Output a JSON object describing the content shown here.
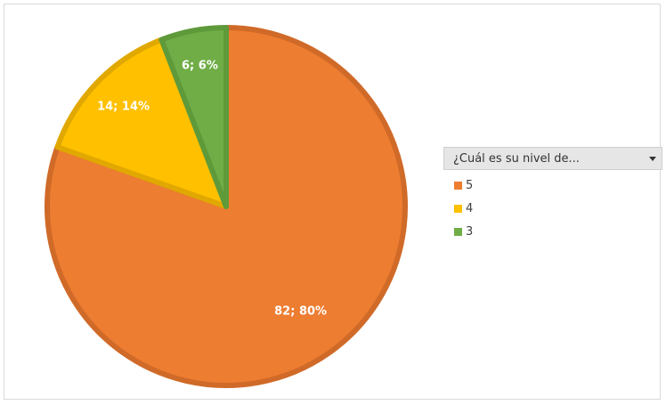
{
  "chart_data": {
    "type": "pie",
    "title": "",
    "legend_title": "¿Cuál es su nivel de...",
    "legend_position": "right",
    "slices": [
      {
        "label": "5",
        "value": 82,
        "percent": "80%",
        "data_label": "82; 80%",
        "color": "#ED7D31",
        "border": "#D06A28"
      },
      {
        "label": "4",
        "value": 14,
        "percent": "14%",
        "data_label": "14; 14%",
        "color": "#FFC000",
        "border": "#E0A800"
      },
      {
        "label": "3",
        "value": 6,
        "percent": "6%",
        "data_label": "6; 6%",
        "color": "#70AD47",
        "border": "#5E9A3A"
      }
    ]
  }
}
